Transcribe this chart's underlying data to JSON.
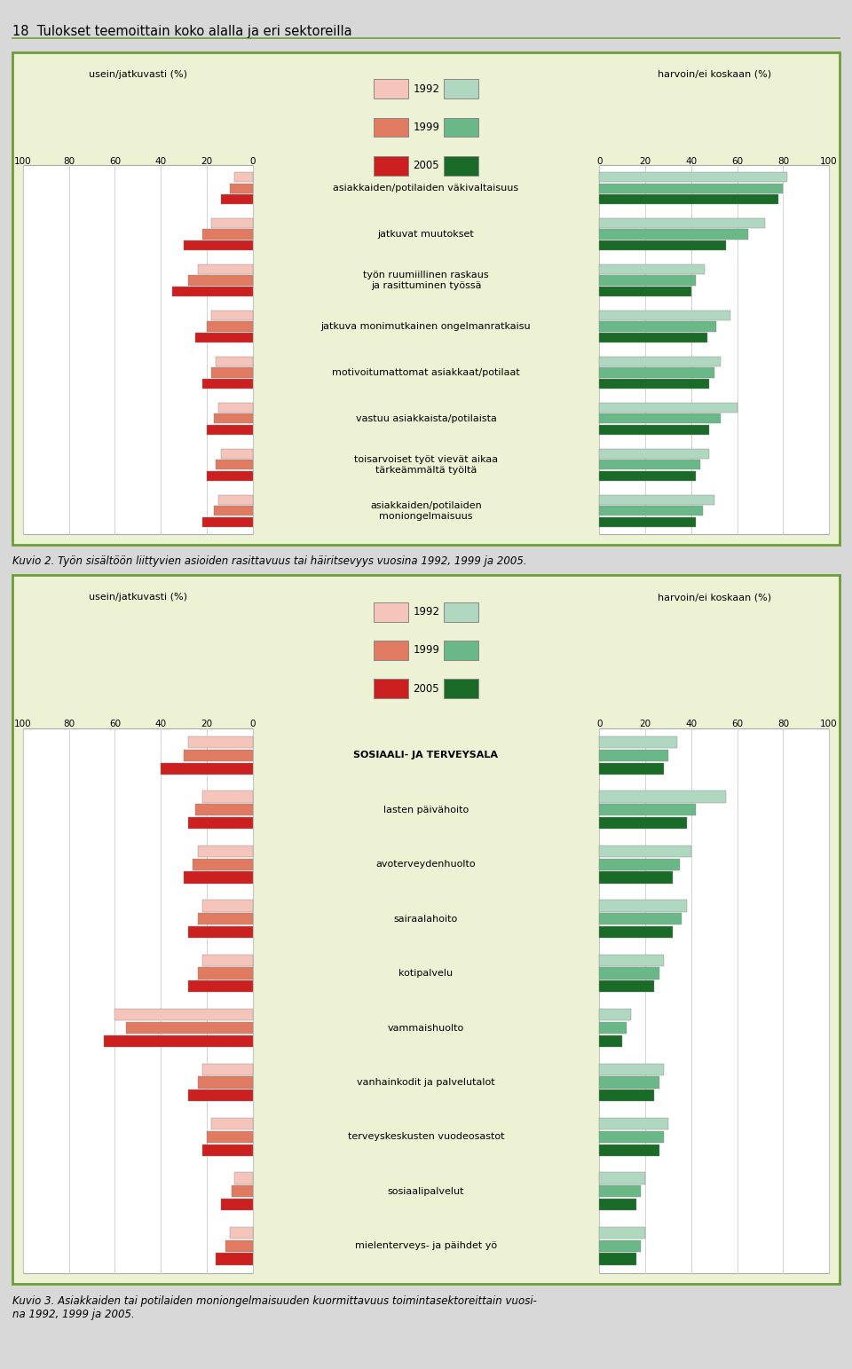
{
  "page_title": "18  Tulokset teemoittain koko alalla ja eri sektoreilla",
  "caption1": "Kuvio 2. Työn sisältöön liittyvien asioiden rasittavuus tai häiritsevyys vuosina 1992, 1999 ja 2005.",
  "caption2": "Kuvio 3. Asiakkaiden tai potilaiden moniongelmaisuuden kuormittavuus toimintasektoreittain vuosi-\nna 1992, 1999 ja 2005.",
  "bg_color": "#edf2d5",
  "bar_bg": "#ffffff",
  "border_color": "#6e9c38",
  "page_bg": "#d8d8d8",
  "chart1": {
    "left_label": "usein/jatkuvasti (%)",
    "right_label": "harvoin/ei koskaan (%)",
    "categories": [
      "asiakkaiden/potilaiden väkivaltaisuus",
      "jatkuvat muutokset",
      "työn ruumiillinen raskaus\nja rasittuminen työssä",
      "jatkuva monimutkainen ongelmanratkaisu",
      "motivoitumattomat asiakkaat/potilaat",
      "vastuu asiakkaista/potilaista",
      "toisarvoiset työt vievät aikaa\ntärkeämmältä työltä",
      "asiakkaiden/potilaiden\nmoniongelmaisuus"
    ],
    "left_1992": [
      8,
      18,
      24,
      18,
      16,
      15,
      14,
      15
    ],
    "left_1999": [
      10,
      22,
      28,
      20,
      18,
      17,
      16,
      17
    ],
    "left_2005": [
      14,
      30,
      35,
      25,
      22,
      20,
      20,
      22
    ],
    "right_1992": [
      82,
      72,
      46,
      57,
      53,
      60,
      48,
      50
    ],
    "right_1999": [
      80,
      65,
      42,
      51,
      50,
      53,
      44,
      45
    ],
    "right_2005": [
      78,
      55,
      40,
      47,
      48,
      48,
      42,
      42
    ]
  },
  "chart2": {
    "left_label": "usein/jatkuvasti (%)",
    "right_label": "harvoin/ei koskaan (%)",
    "categories": [
      "SOSIAALI- JA TERVEYSALA",
      "lasten päivähoito",
      "avoterveydenhuolto",
      "sairaalahoito",
      "kotipalvelu",
      "vammaishuolto",
      "vanhainkodit ja palvelutalot",
      "terveyskeskusten vuodeosastot",
      "sosiaalipalvelut",
      "mielenterveys- ja päihdet yö"
    ],
    "left_1992": [
      28,
      22,
      24,
      22,
      22,
      60,
      22,
      18,
      8,
      10
    ],
    "left_1999": [
      30,
      25,
      26,
      24,
      24,
      55,
      24,
      20,
      9,
      12
    ],
    "left_2005": [
      40,
      28,
      30,
      28,
      28,
      65,
      28,
      22,
      14,
      16
    ],
    "right_1992": [
      34,
      55,
      40,
      38,
      28,
      14,
      28,
      30,
      20,
      20
    ],
    "right_1999": [
      30,
      42,
      35,
      36,
      26,
      12,
      26,
      28,
      18,
      18
    ],
    "right_2005": [
      28,
      38,
      32,
      32,
      24,
      10,
      24,
      26,
      16,
      16
    ]
  },
  "left_colors": [
    "#f5c5bc",
    "#e07a60",
    "#cc2020"
  ],
  "right_colors": [
    "#b0d8c0",
    "#6ab888",
    "#1a6b28"
  ],
  "years": [
    "1992",
    "1999",
    "2005"
  ]
}
